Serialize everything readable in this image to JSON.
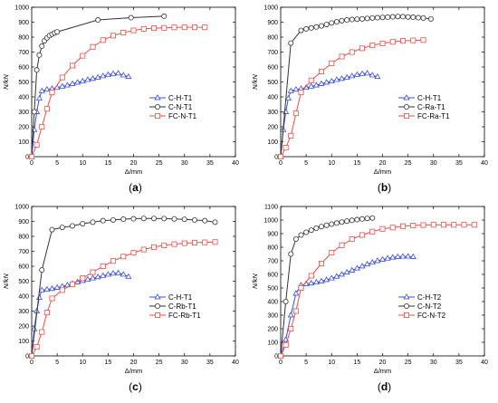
{
  "chart_data": [
    {
      "type": "line",
      "caption": "a",
      "xlabel": "Δ/mm",
      "ylabel": "N/kN",
      "xlim": [
        0,
        40
      ],
      "ylim": [
        0,
        1000
      ],
      "xticks": [
        0,
        5,
        10,
        15,
        20,
        25,
        30,
        35,
        40
      ],
      "yticks": [
        0,
        100,
        200,
        300,
        400,
        500,
        600,
        700,
        800,
        900,
        1000
      ],
      "legend_position": "center-right",
      "series": [
        {
          "name": "C-H-T1",
          "marker": "triangle",
          "color": "#3b4fd8",
          "x": [
            0,
            0.5,
            1,
            1.5,
            2,
            3,
            4,
            5,
            6,
            7,
            8,
            9,
            10,
            11,
            12,
            13,
            14,
            15,
            16,
            17,
            18,
            19
          ],
          "y": [
            0,
            180,
            300,
            390,
            440,
            450,
            455,
            462,
            470,
            478,
            488,
            497,
            505,
            515,
            522,
            530,
            540,
            548,
            555,
            558,
            545,
            535
          ]
        },
        {
          "name": "C-N-T1",
          "marker": "circle",
          "color": "#333333",
          "x": [
            0,
            0.5,
            1,
            1.5,
            2,
            2.5,
            3,
            3.5,
            4,
            4.5,
            5,
            13,
            19.5,
            26
          ],
          "y": [
            0,
            300,
            580,
            680,
            740,
            775,
            795,
            810,
            820,
            828,
            835,
            915,
            930,
            940
          ]
        },
        {
          "name": "FC-N-T1",
          "marker": "square",
          "color": "#e8504a",
          "x": [
            0,
            1,
            2,
            3,
            4,
            6,
            8,
            10,
            12,
            14,
            16,
            18,
            20,
            22,
            24,
            26,
            28,
            30,
            32,
            34
          ],
          "y": [
            0,
            80,
            200,
            320,
            430,
            530,
            610,
            675,
            735,
            780,
            810,
            830,
            845,
            855,
            860,
            862,
            865,
            866,
            866,
            866
          ]
        }
      ]
    },
    {
      "type": "line",
      "caption": "b",
      "xlabel": "Δ/mm",
      "ylabel": "N/kN",
      "xlim": [
        0,
        40
      ],
      "ylim": [
        0,
        1000
      ],
      "xticks": [
        0,
        5,
        10,
        15,
        20,
        25,
        30,
        35,
        40
      ],
      "yticks": [
        0,
        100,
        200,
        300,
        400,
        500,
        600,
        700,
        800,
        900,
        1000
      ],
      "legend_position": "center-right",
      "series": [
        {
          "name": "C-H-T1",
          "marker": "triangle",
          "color": "#3b4fd8",
          "x": [
            0,
            0.5,
            1,
            1.5,
            2,
            3,
            4,
            5,
            6,
            7,
            8,
            9,
            10,
            11,
            12,
            13,
            14,
            15,
            16,
            17,
            18,
            19
          ],
          "y": [
            0,
            180,
            300,
            390,
            440,
            450,
            455,
            462,
            470,
            478,
            488,
            497,
            505,
            515,
            522,
            530,
            540,
            548,
            555,
            558,
            545,
            535
          ]
        },
        {
          "name": "C-Ra-T1",
          "marker": "circle",
          "color": "#333333",
          "x": [
            0,
            2,
            4,
            5,
            6,
            7,
            8,
            9,
            10,
            11,
            12,
            13,
            14,
            15,
            16,
            17,
            18,
            19,
            20,
            21,
            22,
            23,
            24,
            25,
            26,
            27,
            28,
            29.5
          ],
          "y": [
            0,
            760,
            845,
            855,
            862,
            868,
            875,
            885,
            895,
            903,
            910,
            915,
            918,
            920,
            922,
            925,
            928,
            930,
            932,
            934,
            936,
            938,
            937,
            935,
            933,
            930,
            928,
            922
          ]
        },
        {
          "name": "FC-Ra-T1",
          "marker": "square",
          "color": "#e8504a",
          "x": [
            0,
            1,
            2,
            3,
            4,
            6,
            8,
            10,
            12,
            14,
            16,
            18,
            20,
            22,
            24,
            26,
            28
          ],
          "y": [
            0,
            60,
            140,
            290,
            430,
            510,
            570,
            625,
            670,
            700,
            725,
            745,
            758,
            768,
            775,
            778,
            780
          ]
        }
      ]
    },
    {
      "type": "line",
      "caption": "c",
      "xlabel": "Δ/mm",
      "ylabel": "N/kN",
      "xlim": [
        0,
        40
      ],
      "ylim": [
        0,
        1000
      ],
      "xticks": [
        0,
        5,
        10,
        15,
        20,
        25,
        30,
        35,
        40
      ],
      "yticks": [
        0,
        100,
        200,
        300,
        400,
        500,
        600,
        700,
        800,
        900,
        1000
      ],
      "legend_position": "center-right",
      "series": [
        {
          "name": "C-H-T1",
          "marker": "triangle",
          "color": "#3b4fd8",
          "x": [
            0,
            0.5,
            1,
            1.5,
            2,
            3,
            4,
            5,
            6,
            7,
            8,
            9,
            10,
            11,
            12,
            13,
            14,
            15,
            16,
            17,
            18,
            19
          ],
          "y": [
            0,
            180,
            300,
            390,
            440,
            445,
            450,
            457,
            465,
            474,
            484,
            494,
            503,
            512,
            520,
            528,
            537,
            545,
            552,
            555,
            545,
            530
          ]
        },
        {
          "name": "C-Rb-T1",
          "marker": "circle",
          "color": "#333333",
          "x": [
            0,
            2,
            4,
            6,
            8,
            10,
            12,
            14,
            16,
            18,
            20,
            22,
            24,
            26,
            28,
            30,
            32,
            34,
            36
          ],
          "y": [
            0,
            575,
            845,
            860,
            870,
            885,
            895,
            905,
            910,
            915,
            918,
            920,
            920,
            919,
            917,
            914,
            910,
            905,
            895
          ]
        },
        {
          "name": "FC-Rb-T1",
          "marker": "square",
          "color": "#e8504a",
          "x": [
            0,
            1,
            2,
            3,
            4,
            6,
            8,
            10,
            12,
            14,
            16,
            18,
            20,
            22,
            24,
            26,
            28,
            30,
            32,
            34,
            36
          ],
          "y": [
            0,
            60,
            160,
            290,
            385,
            440,
            480,
            520,
            560,
            600,
            635,
            665,
            690,
            712,
            728,
            740,
            748,
            754,
            758,
            760,
            762
          ]
        }
      ]
    },
    {
      "type": "line",
      "caption": "d",
      "xlabel": "Δ/mm",
      "ylabel": "N/kN",
      "xlim": [
        0,
        40
      ],
      "ylim": [
        0,
        1100
      ],
      "xticks": [
        0,
        5,
        10,
        15,
        20,
        25,
        30,
        35,
        40
      ],
      "yticks": [
        0,
        100,
        200,
        300,
        400,
        500,
        600,
        700,
        800,
        900,
        1000,
        1100
      ],
      "legend_position": "center-right",
      "series": [
        {
          "name": "C-H-T2",
          "marker": "triangle",
          "color": "#3b4fd8",
          "x": [
            0,
            1,
            2,
            3,
            4,
            5,
            6,
            7,
            8,
            9,
            10,
            11,
            12,
            13,
            14,
            15,
            16,
            17,
            18,
            19,
            20,
            21,
            22,
            23,
            24,
            25,
            26
          ],
          "y": [
            0,
            120,
            300,
            460,
            520,
            530,
            535,
            542,
            550,
            560,
            572,
            585,
            600,
            615,
            630,
            645,
            660,
            675,
            688,
            700,
            710,
            718,
            725,
            730,
            732,
            733,
            730
          ]
        },
        {
          "name": "C-N-T2",
          "marker": "circle",
          "color": "#333333",
          "x": [
            0,
            1,
            2,
            3,
            4,
            5,
            6,
            7,
            8,
            9,
            10,
            11,
            12,
            13,
            14,
            15,
            16,
            17,
            18
          ],
          "y": [
            0,
            400,
            750,
            860,
            890,
            910,
            925,
            940,
            952,
            962,
            970,
            978,
            985,
            992,
            998,
            1003,
            1008,
            1012,
            1015
          ]
        },
        {
          "name": "FC-N-T2",
          "marker": "square",
          "color": "#e8504a",
          "x": [
            0,
            1,
            2,
            3,
            4,
            6,
            8,
            10,
            12,
            14,
            16,
            18,
            20,
            22,
            24,
            26,
            28,
            30,
            32,
            34,
            36,
            38
          ],
          "y": [
            0,
            80,
            200,
            330,
            500,
            590,
            680,
            760,
            815,
            860,
            890,
            915,
            935,
            945,
            955,
            960,
            963,
            965,
            965,
            965,
            965,
            965
          ]
        }
      ]
    }
  ]
}
